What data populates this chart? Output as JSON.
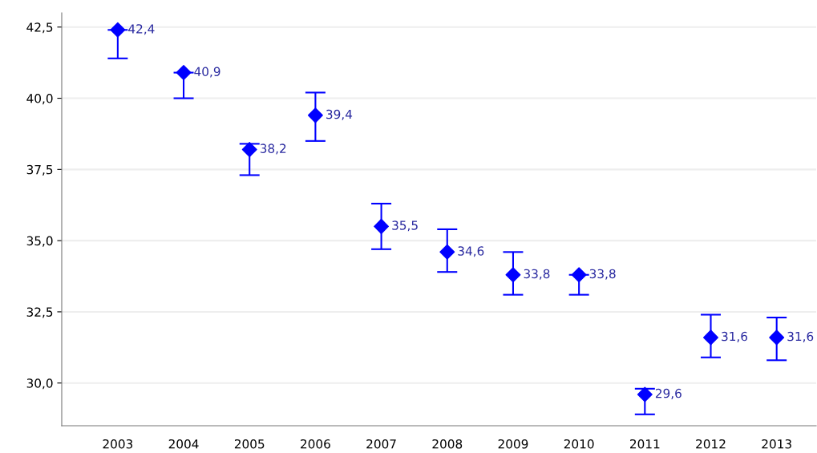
{
  "chart_data": {
    "type": "scatter",
    "categories": [
      "2003",
      "2004",
      "2005",
      "2006",
      "2007",
      "2008",
      "2009",
      "2010",
      "2011",
      "2012",
      "2013"
    ],
    "series": [
      {
        "color": "#0000ff",
        "values": [
          42.4,
          40.9,
          38.2,
          39.4,
          35.5,
          34.6,
          33.8,
          33.8,
          29.6,
          31.6,
          31.6
        ],
        "errors": [
          [
            41.4,
            42.4
          ],
          [
            40.0,
            40.9
          ],
          [
            37.3,
            38.4
          ],
          [
            38.5,
            40.2
          ],
          [
            34.7,
            36.3
          ],
          [
            33.9,
            35.4
          ],
          [
            33.1,
            34.6
          ],
          [
            33.1,
            33.8
          ],
          [
            28.9,
            29.8
          ],
          [
            30.9,
            32.4
          ],
          [
            30.8,
            32.3
          ]
        ],
        "value_labels": [
          "42,4",
          "40,9",
          "38,2",
          "39,4",
          "35,5",
          "34,6",
          "33,8",
          "33,8",
          "29,6",
          "31,6",
          "31,6"
        ]
      }
    ],
    "ylim": [
      28.5,
      43.0
    ],
    "yticks": [
      {
        "value": 30.0,
        "label": "30,0"
      },
      {
        "value": 32.5,
        "label": "32,5"
      },
      {
        "value": 35.0,
        "label": "35,0"
      },
      {
        "value": 37.5,
        "label": "37,5"
      },
      {
        "value": 40.0,
        "label": "40,0"
      },
      {
        "value": 42.5,
        "label": "42,5"
      }
    ],
    "grid": "y",
    "marker": "diamond",
    "legend": false
  }
}
